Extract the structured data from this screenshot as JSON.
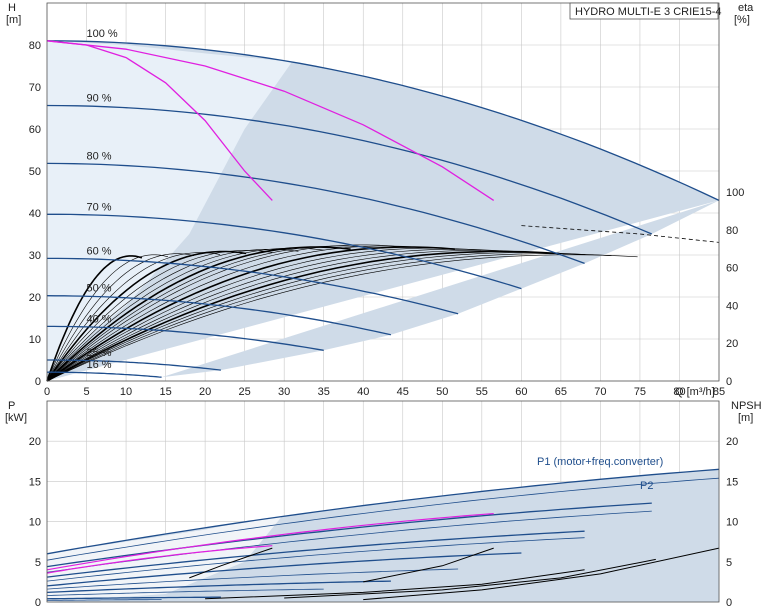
{
  "title": "HYDRO MULTI-E 3 CRIE15-4",
  "chart_data": [
    {
      "type": "line",
      "xlabel": "Q [m³/h]",
      "ylabel_left_unit": "H",
      "ylabel_left_sub": "[m]",
      "ylabel_right_unit": "eta",
      "ylabel_right_sub": "[%]",
      "xlim": [
        0,
        85
      ],
      "ylim": [
        0,
        90
      ],
      "ylim_right": [
        0,
        200
      ],
      "x_ticks": [
        0,
        5,
        10,
        15,
        20,
        25,
        30,
        35,
        40,
        45,
        50,
        55,
        60,
        65,
        70,
        75,
        80,
        85
      ],
      "y_ticks": [
        0,
        10,
        20,
        30,
        40,
        50,
        60,
        70,
        80
      ],
      "y_ticks_right": [
        0,
        20,
        40,
        60,
        80,
        100
      ],
      "grid": true,
      "speed_curves": [
        {
          "name": "100 %",
          "h0": 81,
          "qmax": 85,
          "hend": 43
        },
        {
          "name": "90 %",
          "h0": 65.6,
          "qmax": 76.5,
          "hend": 35
        },
        {
          "name": "80 %",
          "h0": 51.8,
          "qmax": 68,
          "hend": 28
        },
        {
          "name": "70 %",
          "h0": 39.7,
          "qmax": 60,
          "hend": 22
        },
        {
          "name": "60 %",
          "h0": 29.2,
          "qmax": 52,
          "hend": 16
        },
        {
          "name": "50 %",
          "h0": 20.3,
          "qmax": 43.5,
          "hend": 11
        },
        {
          "name": "40 %",
          "h0": 13,
          "qmax": 35,
          "hend": 7.3
        },
        {
          "name": "25 %",
          "h0": 5,
          "qmax": 22,
          "hend": 2.6
        },
        {
          "name": "16 %",
          "h0": 2.1,
          "qmax": 14.5,
          "hend": 0.9
        }
      ],
      "magenta_curves": [
        {
          "points": [
            [
              0,
              81
            ],
            [
              5,
              80
            ],
            [
              10,
              77
            ],
            [
              15,
              71
            ],
            [
              20,
              62
            ],
            [
              25,
              50
            ],
            [
              28.5,
              43
            ]
          ]
        },
        {
          "points": [
            [
              0,
              81
            ],
            [
              10,
              79
            ],
            [
              20,
              75
            ],
            [
              30,
              69
            ],
            [
              40,
              61
            ],
            [
              50,
              51
            ],
            [
              56.5,
              43
            ]
          ]
        }
      ]
    },
    {
      "type": "line",
      "xlabel": "",
      "ylabel_left_unit": "P",
      "ylabel_left_sub": "[kW]",
      "ylabel_right_unit": "NPSH",
      "ylabel_right_sub": "[m]",
      "xlim": [
        0,
        85
      ],
      "ylim": [
        0,
        25
      ],
      "y_ticks": [
        0,
        5,
        10,
        15,
        20
      ],
      "y_ticks_right": [
        0,
        5,
        10,
        15,
        20
      ],
      "grid": true,
      "annotations": [
        "P1 (motor+freq.converter)",
        "P2"
      ],
      "power_curves": [
        {
          "p0": 6.0,
          "qmax": 85,
          "pend": 16.5
        },
        {
          "p0": 5.2,
          "qmax": 85,
          "pend": 15.4
        },
        {
          "p0": 4.4,
          "qmax": 76.5,
          "pend": 12.3
        },
        {
          "p0": 3.7,
          "qmax": 76.5,
          "pend": 11.3
        },
        {
          "p0": 3.1,
          "qmax": 68,
          "pend": 8.8
        },
        {
          "p0": 2.6,
          "qmax": 68,
          "pend": 8.0
        },
        {
          "p0": 2.0,
          "qmax": 60,
          "pend": 6.1
        },
        {
          "p0": 1.6,
          "qmax": 52,
          "pend": 4.1
        },
        {
          "p0": 1.2,
          "qmax": 43.5,
          "pend": 2.6
        },
        {
          "p0": 0.8,
          "qmax": 35,
          "pend": 1.6
        },
        {
          "p0": 0.4,
          "qmax": 22,
          "pend": 0.6
        },
        {
          "p0": 0.2,
          "qmax": 14.5,
          "pend": 0.3
        }
      ],
      "magenta_power": [
        {
          "p0": 3.6,
          "qmax": 28.5,
          "pend": 7.0
        },
        {
          "p0": 4.0,
          "qmax": 56.5,
          "pend": 11.0
        }
      ]
    }
  ],
  "colors": {
    "curve": "#1f4e8c",
    "magenta": "#e020e0",
    "region": "#cfdbe8",
    "region_light": "#e8f0f8",
    "black": "#000000"
  }
}
